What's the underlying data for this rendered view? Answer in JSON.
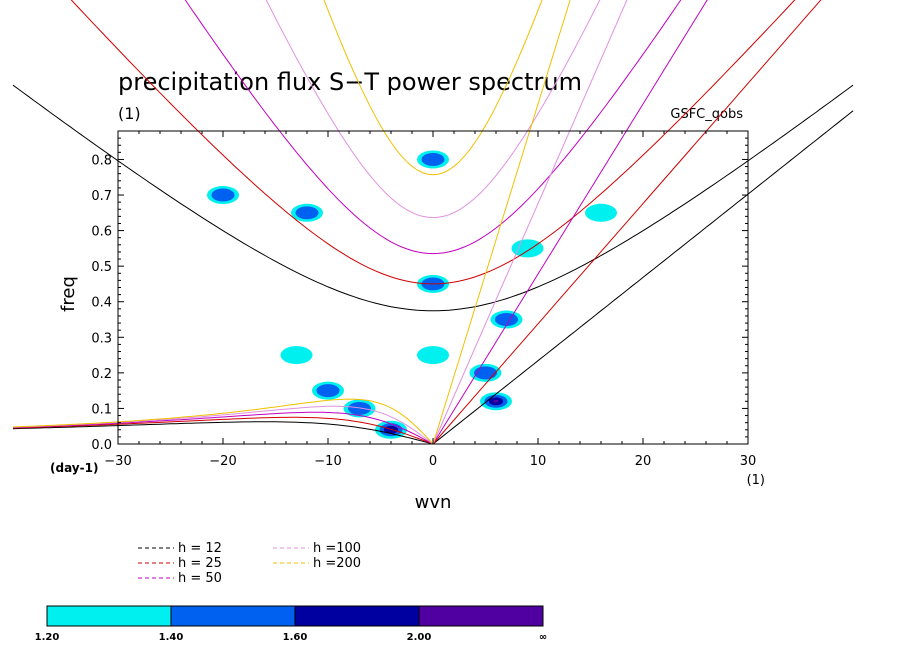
{
  "chart_data": {
    "type": "heatmap",
    "title": "precipitation flux S−T power spectrum",
    "subtitle": "(1)",
    "source_label": "GSFC_qobs",
    "xlabel": "wvn",
    "ylabel": "freq",
    "x_units": "(1)",
    "y_units": "(day-1)",
    "xlim": [
      -30,
      30
    ],
    "ylim": [
      0.0,
      0.88
    ],
    "x_ticks": [
      -30,
      -20,
      -10,
      0,
      10,
      20,
      30
    ],
    "x_tick_labels": [
      "−30",
      "−20",
      "−10",
      "0",
      "10",
      "20",
      "30"
    ],
    "y_ticks": [
      0.0,
      0.1,
      0.2,
      0.3,
      0.4,
      0.5,
      0.6,
      0.7,
      0.8
    ],
    "y_tick_labels": [
      "0.0",
      "0.1",
      "0.2",
      "0.3",
      "0.4",
      "0.5",
      "0.6",
      "0.7",
      "0.8"
    ],
    "grid": false,
    "dispersion_curves": [
      {
        "label": "h = 12",
        "h": 12,
        "color": "#000000"
      },
      {
        "label": "h = 25",
        "h": 25,
        "color": "#d00000"
      },
      {
        "label": "h = 50",
        "h": 50,
        "color": "#c000c0"
      },
      {
        "label": "h =100",
        "h": 100,
        "color": "#e090e0"
      },
      {
        "label": "h =200",
        "h": 200,
        "color": "#f0c000"
      }
    ],
    "colorbar": {
      "bins": [
        {
          "from": "1.20",
          "to": "1.40",
          "color": "#00f0f0"
        },
        {
          "from": "1.40",
          "to": "1.60",
          "color": "#0060f0"
        },
        {
          "from": "1.60",
          "to": "2.00",
          "color": "#0000a0"
        },
        {
          "from": "2.00",
          "to": "∞",
          "color": "#5000a0"
        }
      ],
      "tick_labels": [
        "1.20",
        "1.40",
        "1.60",
        "2.00",
        "∞"
      ]
    },
    "contour_regions": [
      {
        "x": 0,
        "y": 0.45,
        "level": 2
      },
      {
        "x": 0,
        "y": 0.8,
        "level": 2
      },
      {
        "x": 0,
        "y": 0.25,
        "level": 1
      },
      {
        "x": -10,
        "y": 0.15,
        "level": 2
      },
      {
        "x": -13,
        "y": 0.25,
        "level": 1
      },
      {
        "x": -7,
        "y": 0.1,
        "level": 2
      },
      {
        "x": -4,
        "y": 0.04,
        "level": 3
      },
      {
        "x": 5,
        "y": 0.2,
        "level": 2
      },
      {
        "x": 6,
        "y": 0.12,
        "level": 4
      },
      {
        "x": 7,
        "y": 0.35,
        "level": 2
      },
      {
        "x": 9,
        "y": 0.55,
        "level": 1
      },
      {
        "x": -20,
        "y": 0.7,
        "level": 2
      },
      {
        "x": -12,
        "y": 0.65,
        "level": 2
      },
      {
        "x": 16,
        "y": 0.65,
        "level": 1
      }
    ]
  }
}
